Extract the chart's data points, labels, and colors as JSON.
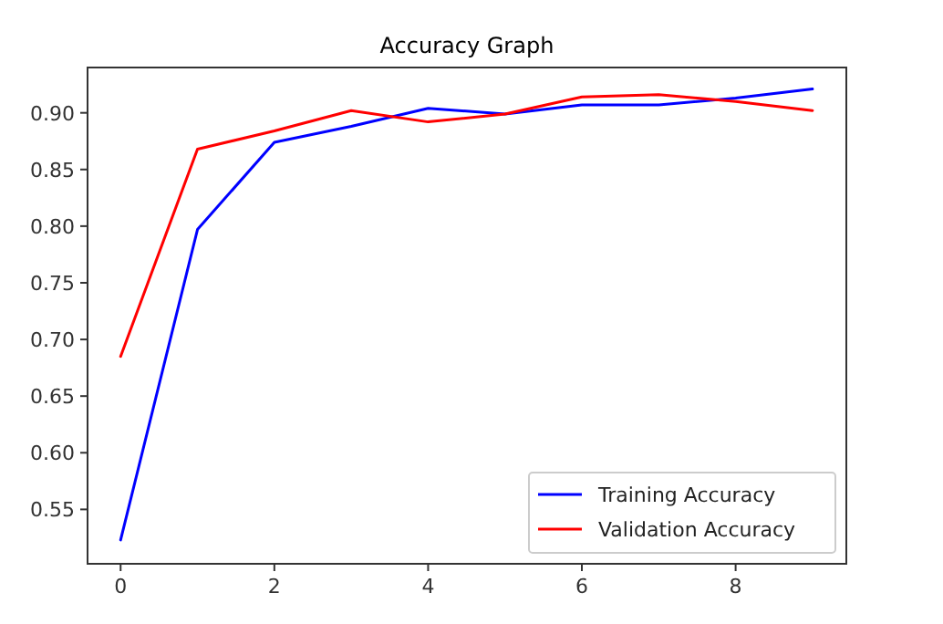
{
  "chart_data": {
    "type": "line",
    "title": "Accuracy Graph",
    "x": [
      0,
      1,
      2,
      3,
      4,
      5,
      6,
      7,
      8,
      9
    ],
    "series": [
      {
        "name": "Training Accuracy",
        "color": "#0000ff",
        "values": [
          0.523,
          0.797,
          0.874,
          0.888,
          0.904,
          0.899,
          0.907,
          0.907,
          0.913,
          0.921
        ]
      },
      {
        "name": "Validation Accuracy",
        "color": "#ff0000",
        "values": [
          0.685,
          0.868,
          0.884,
          0.902,
          0.892,
          0.899,
          0.914,
          0.916,
          0.91,
          0.902
        ]
      }
    ],
    "xlim": [
      -0.43,
      9.44
    ],
    "xticks": [
      0,
      2,
      4,
      6,
      8
    ],
    "ylim": [
      0.502,
      0.94
    ],
    "yticks": [
      {
        "value": 0.55,
        "label": "0.55"
      },
      {
        "value": 0.6,
        "label": "0.60"
      },
      {
        "value": 0.65,
        "label": "0.65"
      },
      {
        "value": 0.7,
        "label": "0.70"
      },
      {
        "value": 0.75,
        "label": "0.75"
      },
      {
        "value": 0.8,
        "label": "0.80"
      },
      {
        "value": 0.85,
        "label": "0.85"
      },
      {
        "value": 0.9,
        "label": "0.90"
      }
    ],
    "legend": "bottom right",
    "grid": false,
    "marker": "none",
    "line_style": "solid"
  }
}
